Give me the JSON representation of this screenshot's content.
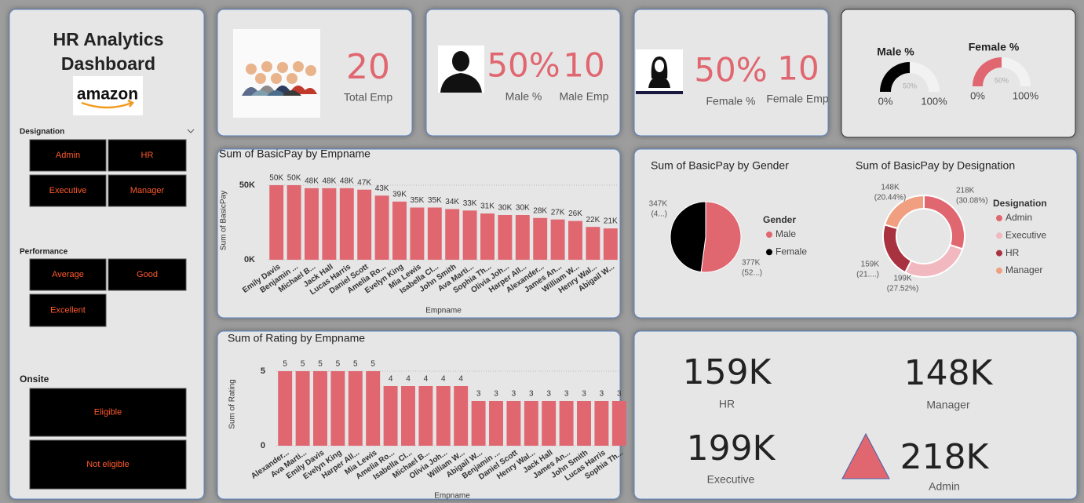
{
  "sidebar": {
    "title": [
      "HR Analytics",
      "Dashboard"
    ],
    "logo": "amazon",
    "slicers": [
      {
        "title": "Designation",
        "items": [
          "Admin",
          "HR",
          "Executive",
          "Manager"
        ]
      },
      {
        "title": "Performance",
        "items": [
          "Average",
          "Good",
          "Excellent"
        ]
      },
      {
        "title": "Onsite",
        "items": [
          "Eligible",
          "Not eligible"
        ]
      }
    ]
  },
  "cards": [
    {
      "value": "20",
      "label": "Total Emp"
    },
    {
      "value": "50%",
      "label": "Male %"
    },
    {
      "value": "10",
      "label": "Male Emp"
    },
    {
      "value": "50%",
      "label": "Female %"
    },
    {
      "value": "10",
      "label": "Female Emp"
    }
  ],
  "chart_data": [
    {
      "type": "gauge",
      "title": "Male %",
      "values": [
        50
      ],
      "value_labels": [
        "50%"
      ],
      "color": "#000000",
      "ylim": [
        0,
        100
      ],
      "yticks": [
        {
          "value": 0,
          "label": "0%"
        },
        {
          "value": 100,
          "label": "100%"
        }
      ]
    },
    {
      "type": "gauge",
      "title": "Female %",
      "values": [
        50
      ],
      "value_labels": [
        "50%"
      ],
      "color": "#e06670",
      "ylim": [
        0,
        100
      ],
      "yticks": [
        {
          "value": 0,
          "label": "0%"
        },
        {
          "value": 100,
          "label": "100%"
        }
      ]
    },
    {
      "type": "bar",
      "title": "Sum of BasicPay by Empname",
      "x_label": "Empname",
      "y_label": "Sum of BasicPay",
      "color": "#e06670",
      "grid": true,
      "categories": [
        "Emily Davis",
        "Benjamin ...",
        "Michael B...",
        "Jack Hall",
        "Lucas Harris",
        "Daniel Scott",
        "Amelia Ro...",
        "Evelyn King",
        "Mia Lewis",
        "Isabella Cl...",
        "John Smith",
        "Ava Marti...",
        "Sophia Th...",
        "Olivia Joh...",
        "Harper All...",
        "Alexander...",
        "James An...",
        "William W...",
        "Henry Wal...",
        "Abigail W..."
      ],
      "values": [
        50000,
        50000,
        48000,
        48000,
        48000,
        47000,
        43000,
        39000,
        35000,
        35000,
        34000,
        33000,
        31000,
        30000,
        30000,
        28000,
        27000,
        26000,
        22000,
        21000
      ],
      "value_labels": [
        "50K",
        "50K",
        "48K",
        "48K",
        "48K",
        "47K",
        "43K",
        "39K",
        "35K",
        "35K",
        "34K",
        "33K",
        "31K",
        "30K",
        "30K",
        "28K",
        "27K",
        "26K",
        "22K",
        "21K"
      ],
      "ylim": [
        0,
        55000
      ],
      "yticks": [
        {
          "value": 0,
          "label": "0K"
        },
        {
          "value": 50000,
          "label": "50K"
        }
      ]
    },
    {
      "type": "pie",
      "title": "Sum of BasicPay by Gender",
      "legend_title": "Gender",
      "categories": [
        "Male",
        "Female"
      ],
      "values": [
        377000,
        347000
      ],
      "value_labels": [
        "377K",
        "347K"
      ],
      "percent_labels": [
        "(52...)",
        "(4...)"
      ],
      "colors": [
        "#e06670",
        "#000000"
      ]
    },
    {
      "type": "donut",
      "title": "Sum of BasicPay by Designation",
      "legend_title": "Designation",
      "categories": [
        "Admin",
        "Executive",
        "HR",
        "Manager"
      ],
      "values": [
        218000,
        199000,
        159000,
        148000
      ],
      "value_labels": [
        "218K",
        "199K",
        "159K",
        "148K"
      ],
      "percent_labels": [
        "(30.08%)",
        "(27.52%)",
        "(21....)",
        "(20.44%)"
      ],
      "colors": [
        "#e06670",
        "#f2b8bf",
        "#a8323f",
        "#f0a080"
      ]
    },
    {
      "type": "bar",
      "title": "Sum of Rating by Empname",
      "x_label": "Empname",
      "y_label": "Sum of Rating",
      "color": "#e06670",
      "grid": true,
      "categories": [
        "Alexander...",
        "Ava Marti...",
        "Emily Davis",
        "Evelyn King",
        "Harper All...",
        "Mia Lewis",
        "Amelia Ro...",
        "Isabella Cl...",
        "Michael B...",
        "Olivia Joh...",
        "William W...",
        "Abigail W...",
        "Benjamin ...",
        "Daniel Scott",
        "Henry Wal...",
        "Jack Hall",
        "James An...",
        "John Smith",
        "Lucas Harris",
        "Sophia Th..."
      ],
      "values": [
        5,
        5,
        5,
        5,
        5,
        5,
        4,
        4,
        4,
        4,
        4,
        3,
        3,
        3,
        3,
        3,
        3,
        3,
        3,
        3
      ],
      "ylim": [
        0,
        5.5
      ],
      "yticks": [
        0,
        5
      ]
    }
  ],
  "kpis": [
    {
      "value": "159K",
      "label": "HR"
    },
    {
      "value": "148K",
      "label": "Manager"
    },
    {
      "value": "199K",
      "label": "Executive"
    },
    {
      "value": "218K",
      "label": "Admin"
    }
  ]
}
